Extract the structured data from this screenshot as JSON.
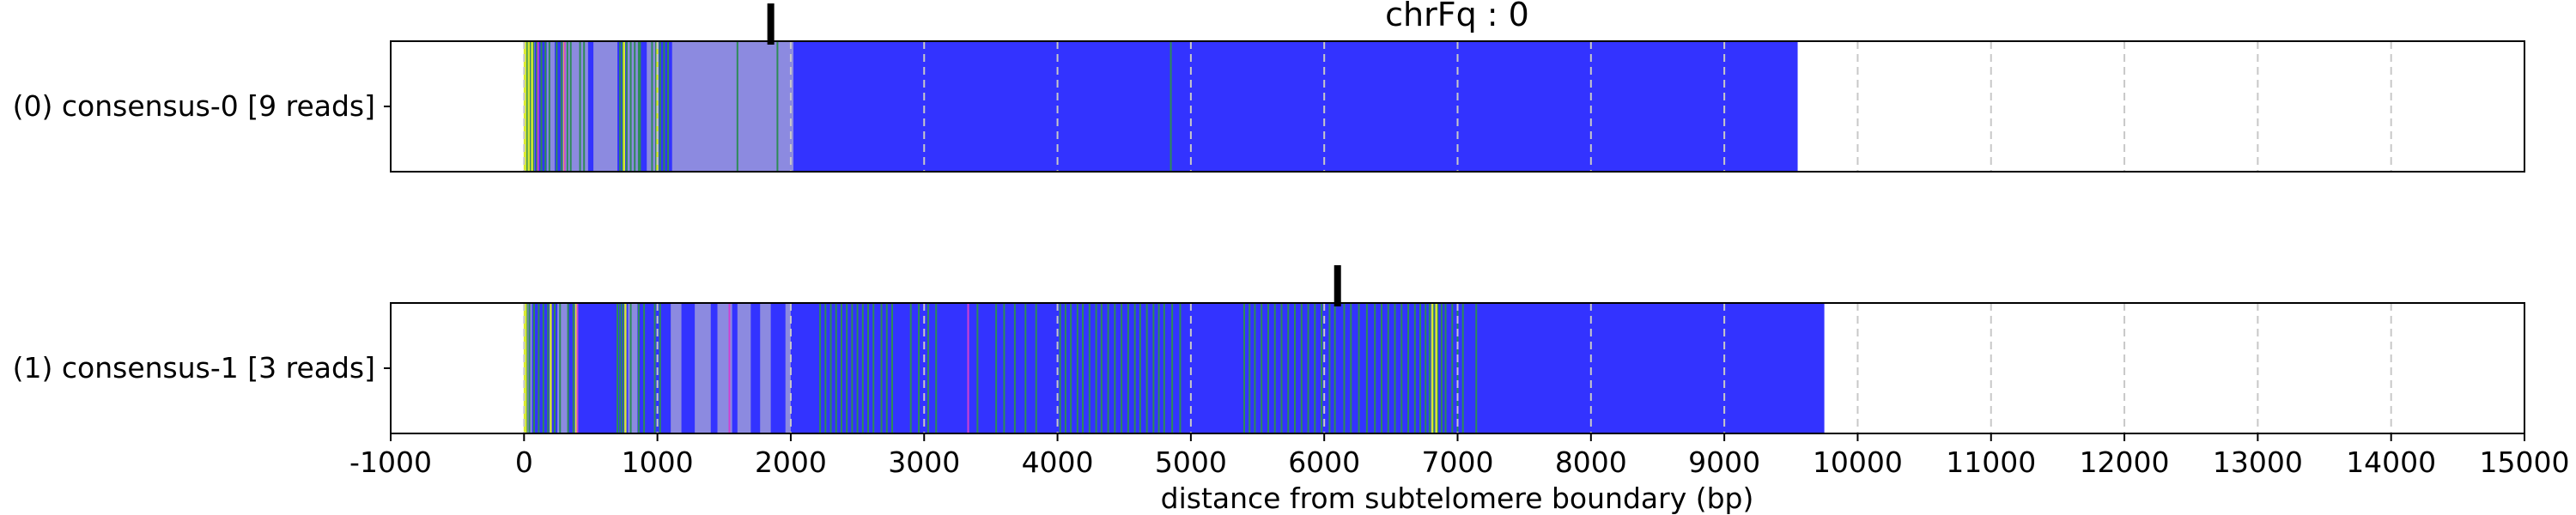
{
  "chart_data": {
    "type": "bar",
    "title": "chrFq : 0",
    "xlabel": "distance from subtelomere boundary (bp)",
    "ylabel": "",
    "xlim": [
      -1000,
      15000
    ],
    "xticks": [
      -1000,
      0,
      1000,
      2000,
      3000,
      4000,
      5000,
      6000,
      7000,
      8000,
      9000,
      10000,
      11000,
      12000,
      13000,
      14000,
      15000
    ],
    "grid": "x-dashed",
    "colors": {
      "repeat": "#3333ff",
      "light_region": "#8c8ae0",
      "variant_green": "#2e8b57",
      "variant_yellow": "#d8e830",
      "variant_magenta": "#d040d0",
      "marker": "#000000"
    },
    "rows": [
      {
        "label": "(0) consensus-0 [9 reads]",
        "end": 9550,
        "marker": 1850,
        "light_regions": [
          [
            0,
            80
          ],
          [
            170,
            230
          ],
          [
            310,
            480
          ],
          [
            520,
            700
          ],
          [
            770,
            870
          ],
          [
            920,
            990
          ],
          [
            1110,
            2020
          ]
        ],
        "green_lines": [
          15,
          25,
          50,
          70,
          95,
          130,
          160,
          190,
          245,
          280,
          325,
          350,
          420,
          450,
          720,
          740,
          770,
          800,
          830,
          860,
          870,
          960,
          990,
          1020,
          1050,
          1080,
          1600,
          1900,
          4850
        ],
        "yellow_lines": [
          5,
          10,
          35,
          60,
          300,
          750,
          1000
        ],
        "magenta_lines": [
          105,
          305
        ]
      },
      {
        "label": "(1) consensus-1 [3 reads]",
        "end": 9750,
        "marker": 6100,
        "light_regions": [
          [
            0,
            60
          ],
          [
            250,
            330
          ],
          [
            780,
            850
          ],
          [
            1100,
            1180
          ],
          [
            1280,
            1400
          ],
          [
            1450,
            1560
          ],
          [
            1600,
            1700
          ],
          [
            1770,
            1850
          ],
          [
            1960,
            2000
          ]
        ],
        "green_lines": [
          20,
          40,
          75,
          110,
          145,
          180,
          230,
          270,
          330,
          370,
          700,
          720,
          740,
          800,
          860,
          900,
          980,
          1020,
          2220,
          2260,
          2300,
          2340,
          2380,
          2420,
          2460,
          2500,
          2540,
          2580,
          2620,
          2680,
          2720,
          2760,
          2900,
          2960,
          3030,
          3090,
          3400,
          3540,
          3600,
          3680,
          3760,
          3840,
          4020,
          4060,
          4100,
          4150,
          4190,
          4240,
          4290,
          4330,
          4380,
          4430,
          4480,
          4530,
          4580,
          4620,
          4670,
          4720,
          4760,
          4800,
          4860,
          4920,
          5400,
          5440,
          5480,
          5530,
          5580,
          5630,
          5680,
          5730,
          5780,
          5830,
          5880,
          5930,
          5980,
          6040,
          6080,
          6150,
          6200,
          6260,
          6320,
          6380,
          6430,
          6480,
          6530,
          6580,
          6630,
          6680,
          6720,
          6760,
          6790,
          6820,
          6850,
          6880,
          6910,
          6960,
          7000,
          7040,
          7140
        ],
        "yellow_lines": [
          5,
          12,
          200,
          390,
          760,
          6810,
          6840
        ],
        "magenta_lines": [
          400,
          1540,
          3330
        ]
      }
    ]
  }
}
